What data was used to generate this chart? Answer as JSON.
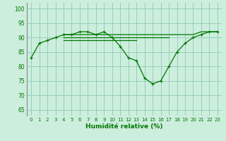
{
  "background_color": "#cceedd",
  "grid_color": "#99ccbb",
  "line_color": "#007700",
  "xlabel": "Humidité relative (%)",
  "xlim": [
    -0.5,
    23.5
  ],
  "ylim": [
    63,
    102
  ],
  "yticks": [
    65,
    70,
    75,
    80,
    85,
    90,
    95,
    100
  ],
  "xticks": [
    0,
    1,
    2,
    3,
    4,
    5,
    6,
    7,
    8,
    9,
    10,
    11,
    12,
    13,
    14,
    15,
    16,
    17,
    18,
    19,
    20,
    21,
    22,
    23
  ],
  "series_main": [
    83,
    88,
    89,
    90,
    91,
    91,
    92,
    92,
    91,
    92,
    90,
    87,
    83,
    82,
    76,
    74,
    75,
    80,
    85,
    88,
    90,
    91,
    92,
    92
  ],
  "series_flat1": [
    null,
    null,
    null,
    null,
    91,
    91,
    91,
    91,
    91,
    91,
    91,
    91,
    91,
    91,
    91,
    91,
    91,
    91,
    91,
    91,
    91,
    92,
    92,
    92
  ],
  "series_flat2": [
    null,
    null,
    null,
    null,
    90,
    90,
    90,
    90,
    90,
    90,
    90,
    90,
    90,
    90,
    90,
    90,
    90,
    90,
    null,
    null,
    null,
    null,
    null,
    null
  ],
  "series_flat3": [
    null,
    null,
    null,
    null,
    89,
    89,
    89,
    89,
    89,
    89,
    89,
    89,
    89,
    89,
    null,
    null,
    null,
    null,
    null,
    null,
    null,
    null,
    null,
    null
  ]
}
